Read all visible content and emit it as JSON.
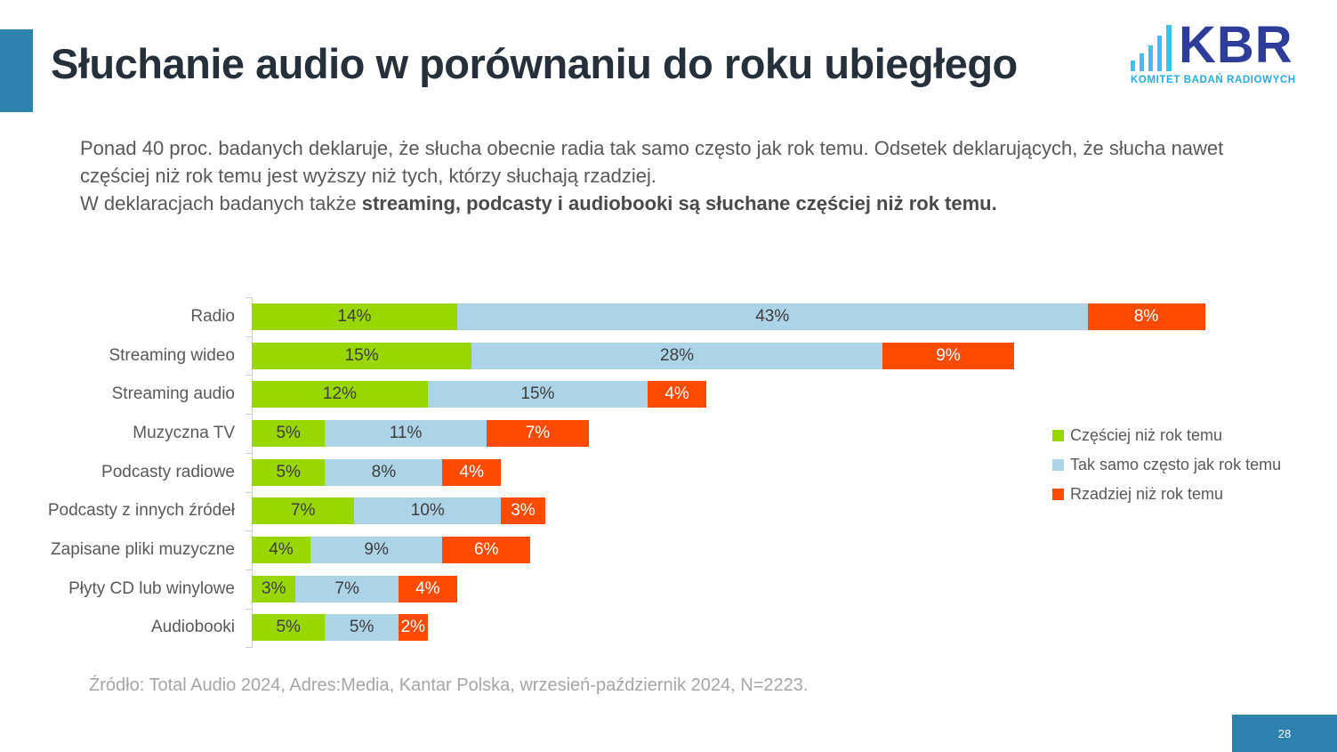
{
  "title": "Słuchanie audio w porównaniu do roku ubiegłego",
  "logo": {
    "text": "KBR",
    "subtitle": "KOMITET BADAŃ RADIOWYCH",
    "text_color": "#2E3D99",
    "bars_color": "#3EC1F0",
    "subtitle_color": "#29ABE2"
  },
  "intro": {
    "line1": "Ponad 40 proc. badanych deklaruje, że słucha obecnie radia tak samo często jak rok temu. Odsetek deklarujących, że słucha nawet",
    "line2": "częściej niż rok temu jest wyższy niż tych, którzy słuchają rzadziej.",
    "line3_regular": "W deklaracjach badanych także ",
    "line3_bold": "streaming, podcasty i audiobooki są słuchane częściej niż rok temu."
  },
  "chart_data": {
    "type": "bar",
    "orientation": "horizontal-stacked",
    "title": "",
    "xlabel": "",
    "ylabel": "",
    "value_suffix": "%",
    "xlim": [
      0,
      66
    ],
    "grid": false,
    "legend_position": "right",
    "categories": [
      "Radio",
      "Streaming wideo",
      "Streaming audio",
      "Muzyczna TV",
      "Podcasty radiowe",
      "Podcasty z innych źródeł",
      "Zapisane pliki muzyczne",
      "Płyty CD lub winylowe",
      "Audiobooki"
    ],
    "series": [
      {
        "name": "Częściej niż rok temu",
        "color": "#98D700",
        "label_color": "#3D3D3D",
        "values": [
          14,
          15,
          12,
          5,
          5,
          7,
          4,
          3,
          5
        ]
      },
      {
        "name": "Tak samo często jak rok temu",
        "color": "#ACD3E6",
        "label_color": "#3D3D3D",
        "values": [
          43,
          28,
          15,
          11,
          8,
          10,
          9,
          7,
          5
        ]
      },
      {
        "name": "Rzadziej niż rok temu",
        "color": "#FF4B00",
        "label_color": "#FFFFFF",
        "values": [
          8,
          9,
          4,
          7,
          4,
          3,
          6,
          4,
          2
        ]
      }
    ]
  },
  "source": "Źródło: Total Audio 2024, Adres:Media, Kantar Polska, wrzesień-październik 2024, N=2223.",
  "page_number": "28",
  "colors": {
    "accent_blue": "#2E82AE",
    "title_text": "#25303B",
    "body_text": "#595959",
    "source_text": "#A6A6A6",
    "axis_line": "#CBCED1"
  }
}
